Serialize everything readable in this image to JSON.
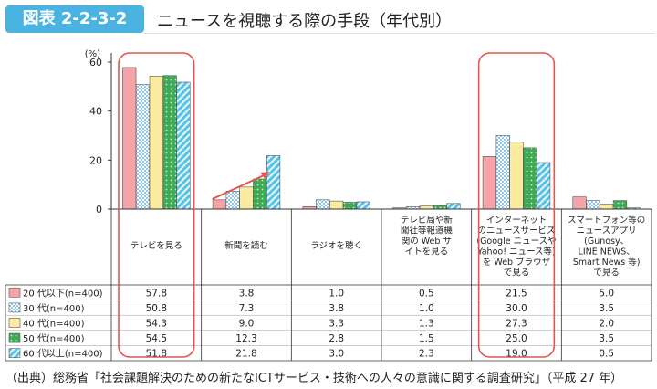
{
  "header": {
    "badge": "図表 2-2-3-2",
    "title": "ニュースを視聴する際の手段（年代別）"
  },
  "source": "（出典）総務省「社会課題解決のための新たなICTサービス・技術への人々の意識に関する調査研究」（平成 27 年）",
  "colors": {
    "series": [
      "#f4a3a8",
      "#8fc6ea",
      "#fbeb9f",
      "#3faa55",
      "#57c3e8"
    ]
  },
  "chart_data": {
    "type": "bar",
    "yunit": "(%)",
    "ylim": [
      0,
      60
    ],
    "yticks": [
      0,
      20,
      40,
      60
    ],
    "grid": false,
    "categories": [
      [
        "テレビを見る"
      ],
      [
        "新聞を読む"
      ],
      [
        "ラジオを聴く"
      ],
      [
        "テレビ局や新",
        "聞社等報道機",
        "関の Web サ",
        "イトを見る"
      ],
      [
        "インターネット",
        "のニュースサービス",
        "(Google ニュースや",
        "Yahoo! ニュース等)",
        "を Web ブラウザ",
        "で見る"
      ],
      [
        "スマートフォン等の",
        "ニュースアプリ",
        "(Gunosy、",
        "LINE NEWS、",
        "Smart News 等)",
        "で見る"
      ]
    ],
    "series": [
      {
        "name": "20 代以下(n=400)",
        "values": [
          57.8,
          3.8,
          1.0,
          0.5,
          21.5,
          5.0
        ],
        "labels": [
          "57.8",
          "3.8",
          "1.0",
          "0.5",
          "21.5",
          "5.0"
        ]
      },
      {
        "name": "30 代(n=400)",
        "values": [
          50.8,
          7.3,
          3.8,
          1.0,
          30.0,
          3.5
        ],
        "labels": [
          "50.8",
          "7.3",
          "3.8",
          "1.0",
          "30.0",
          "3.5"
        ]
      },
      {
        "name": "40 代(n=400)",
        "values": [
          54.3,
          9.0,
          3.3,
          1.3,
          27.3,
          2.0
        ],
        "labels": [
          "54.3",
          "9.0",
          "3.3",
          "1.3",
          "27.3",
          "2.0"
        ]
      },
      {
        "name": "50 代(n=400)",
        "values": [
          54.5,
          12.3,
          2.8,
          1.5,
          25.0,
          3.5
        ],
        "labels": [
          "54.5",
          "12.3",
          "2.8",
          "1.5",
          "25.0",
          "3.5"
        ]
      },
      {
        "name": "60 代以上(n=400)",
        "values": [
          51.8,
          21.8,
          3.0,
          2.3,
          19.0,
          0.5
        ],
        "labels": [
          "51.8",
          "21.8",
          "3.0",
          "2.3",
          "19.0",
          "0.5"
        ]
      }
    ]
  }
}
